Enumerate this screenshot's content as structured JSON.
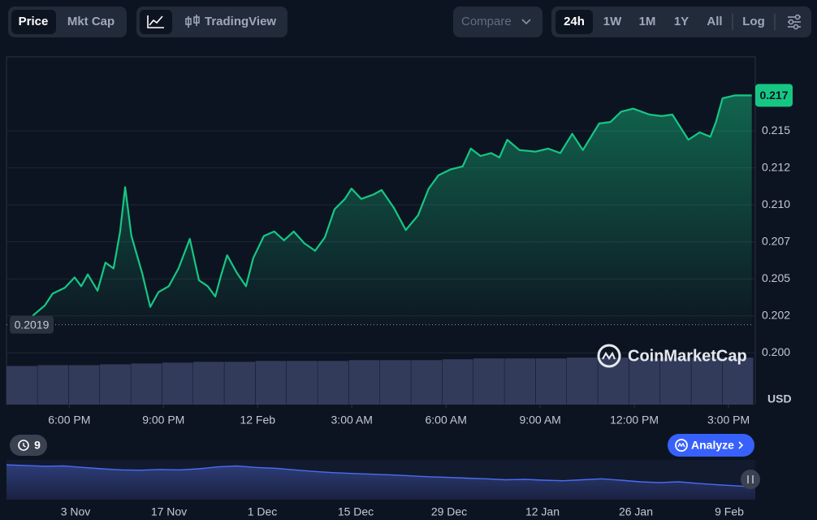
{
  "toolbar": {
    "tabs": [
      "Price",
      "Mkt Cap"
    ],
    "chart_mode": "TradingView",
    "compare": "Compare",
    "ranges": [
      "24h",
      "1W",
      "1M",
      "1Y",
      "All"
    ],
    "log": "Log"
  },
  "chart_data": {
    "type": "line",
    "color": "#16c784",
    "x": [
      16.83,
      17.22,
      17.47,
      17.86,
      18.17,
      18.38,
      18.59,
      18.9,
      19.15,
      19.41,
      19.62,
      19.78,
      19.98,
      20.32,
      20.58,
      20.84,
      21.17,
      21.48,
      21.84,
      22.13,
      22.41,
      22.65,
      22.83,
      23.03,
      23.34,
      23.63,
      23.86,
      24.2,
      24.53,
      24.84,
      25.15,
      25.49,
      25.83,
      26.14,
      26.45,
      26.78,
      26.99,
      27.3,
      27.69,
      27.95,
      28.34,
      28.72,
      29.11,
      29.45,
      29.76,
      30.15,
      30.53,
      30.79,
      31.1,
      31.44,
      31.7,
      31.95,
      32.34,
      32.86,
      33.25,
      33.64,
      34.02,
      34.36,
      34.88,
      35.24,
      35.58,
      35.96,
      36.48,
      36.87,
      37.21,
      37.72,
      38.08,
      38.42,
      38.6,
      38.81,
      39.2,
      39.53,
      39.74
    ],
    "values": [
      0.2025,
      0.2032,
      0.204,
      0.2044,
      0.2051,
      0.2045,
      0.2053,
      0.2042,
      0.2061,
      0.2057,
      0.2082,
      0.2112,
      0.2079,
      0.2054,
      0.2031,
      0.2041,
      0.2045,
      0.2057,
      0.2077,
      0.2049,
      0.2045,
      0.2038,
      0.2052,
      0.2066,
      0.2054,
      0.2045,
      0.2064,
      0.2079,
      0.2082,
      0.2076,
      0.2082,
      0.2074,
      0.2069,
      0.2078,
      0.2097,
      0.2104,
      0.2111,
      0.2104,
      0.2107,
      0.211,
      0.2098,
      0.2083,
      0.2093,
      0.2111,
      0.212,
      0.2124,
      0.2126,
      0.2138,
      0.2133,
      0.2135,
      0.2132,
      0.2144,
      0.2137,
      0.2136,
      0.2138,
      0.2135,
      0.2148,
      0.2137,
      0.2155,
      0.2156,
      0.2163,
      0.2165,
      0.2161,
      0.216,
      0.2161,
      0.2144,
      0.2149,
      0.2146,
      0.2156,
      0.2172,
      0.2174,
      0.2174,
      0.2174
    ],
    "current_price_label": "0.217",
    "reference_line": 0.2019,
    "xlim": [
      16,
      39.8
    ],
    "xticks": [
      {
        "value": 18,
        "label": "6:00 PM"
      },
      {
        "value": 21,
        "label": "9:00 PM"
      },
      {
        "value": 24,
        "label": "12 Feb"
      },
      {
        "value": 27,
        "label": "3:00 AM"
      },
      {
        "value": 30,
        "label": "6:00 AM"
      },
      {
        "value": 33,
        "label": "9:00 AM"
      },
      {
        "value": 36,
        "label": "12:00 PM"
      },
      {
        "value": 39,
        "label": "3:00 PM"
      }
    ],
    "ylim": [
      0.1965,
      0.22
    ],
    "yticks": [
      {
        "value": 0.2,
        "label": "0.200"
      },
      {
        "value": 0.2025,
        "label": "0.202"
      },
      0.205,
      {
        "value": 0.2075,
        "label": "0.207"
      },
      {
        "value": 0.21,
        "label": "0.210"
      },
      {
        "value": 0.2125,
        "label": "0.212"
      },
      0.215
    ],
    "grid": true,
    "currency": "USD",
    "watermark": "CoinMarketCap",
    "volume": {
      "color": "#323b5a",
      "ylim": [
        0,
        60
      ],
      "values": [
        46,
        47,
        47,
        48,
        49,
        50,
        51,
        51,
        52,
        52,
        52,
        53,
        53,
        53,
        54,
        55,
        55,
        55,
        56,
        56,
        55,
        56,
        56,
        56
      ]
    }
  },
  "history_count": "9",
  "analyze": "Analyze",
  "navigator": {
    "color": "#4a6cf7",
    "ylim": [
      0.15,
      0.35
    ],
    "values": [
      0.325,
      0.322,
      0.318,
      0.32,
      0.312,
      0.305,
      0.3,
      0.298,
      0.302,
      0.3,
      0.305,
      0.315,
      0.32,
      0.312,
      0.308,
      0.3,
      0.292,
      0.286,
      0.282,
      0.278,
      0.275,
      0.27,
      0.265,
      0.262,
      0.258,
      0.255,
      0.25,
      0.252,
      0.248,
      0.245,
      0.25,
      0.255,
      0.248,
      0.24,
      0.236,
      0.24,
      0.232,
      0.225,
      0.22,
      0.214
    ],
    "date_labels": [
      "3 Nov",
      "17 Nov",
      "1 Dec",
      "15 Dec",
      "29 Dec",
      "12 Jan",
      "26 Jan",
      "9 Feb"
    ]
  }
}
